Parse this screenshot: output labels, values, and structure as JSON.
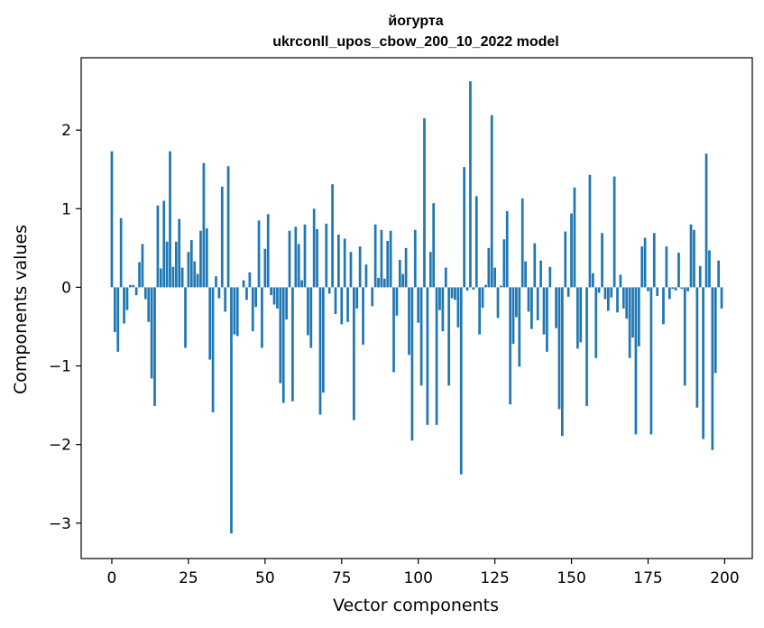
{
  "chart_data": {
    "type": "bar",
    "title_line1": "йогурта",
    "title_line2": "ukrconll_upos_cbow_200_10_2022 model",
    "xlabel": "Vector components",
    "ylabel": "Components values",
    "xlim": [
      -10,
      209
    ],
    "ylim": [
      -3.45,
      2.92
    ],
    "x_ticks": [
      0,
      25,
      50,
      75,
      100,
      125,
      150,
      175,
      200
    ],
    "x_tick_labels": [
      "0",
      "25",
      "50",
      "75",
      "100",
      "125",
      "150",
      "175",
      "200"
    ],
    "y_ticks": [
      -3,
      -2,
      -1,
      0,
      1,
      2
    ],
    "y_tick_labels": [
      "−3",
      "−2",
      "−1",
      "0",
      "1",
      "2"
    ],
    "bar_color": "#1f77b4",
    "grid": false,
    "x": [
      0,
      1,
      2,
      3,
      4,
      5,
      6,
      7,
      8,
      9,
      10,
      11,
      12,
      13,
      14,
      15,
      16,
      17,
      18,
      19,
      20,
      21,
      22,
      23,
      24,
      25,
      26,
      27,
      28,
      29,
      30,
      31,
      32,
      33,
      34,
      35,
      36,
      37,
      38,
      39,
      40,
      41,
      42,
      43,
      44,
      45,
      46,
      47,
      48,
      49,
      50,
      51,
      52,
      53,
      54,
      55,
      56,
      57,
      58,
      59,
      60,
      61,
      62,
      63,
      64,
      65,
      66,
      67,
      68,
      69,
      70,
      71,
      72,
      73,
      74,
      75,
      76,
      77,
      78,
      79,
      80,
      81,
      82,
      83,
      84,
      85,
      86,
      87,
      88,
      89,
      90,
      91,
      92,
      93,
      94,
      95,
      96,
      97,
      98,
      99,
      100,
      101,
      102,
      103,
      104,
      105,
      106,
      107,
      108,
      109,
      110,
      111,
      112,
      113,
      114,
      115,
      116,
      117,
      118,
      119,
      120,
      121,
      122,
      123,
      124,
      125,
      126,
      127,
      128,
      129,
      130,
      131,
      132,
      133,
      134,
      135,
      136,
      137,
      138,
      139,
      140,
      141,
      142,
      143,
      144,
      145,
      146,
      147,
      148,
      149,
      150,
      151,
      152,
      153,
      154,
      155,
      156,
      157,
      158,
      159,
      160,
      161,
      162,
      163,
      164,
      165,
      166,
      167,
      168,
      169,
      170,
      171,
      172,
      173,
      174,
      175,
      176,
      177,
      178,
      179,
      180,
      181,
      182,
      183,
      184,
      185,
      186,
      187,
      188,
      189,
      190,
      191,
      192,
      193,
      194,
      195,
      196,
      197,
      198,
      199
    ],
    "values": [
      1.73,
      -0.57,
      -0.82,
      0.88,
      -0.46,
      -0.29,
      0.03,
      0.03,
      -0.1,
      0.32,
      0.55,
      -0.15,
      -0.44,
      -1.16,
      -1.51,
      1.04,
      0.24,
      1.1,
      0.58,
      1.73,
      0.26,
      0.58,
      0.87,
      0.25,
      -0.77,
      0.45,
      0.6,
      0.33,
      0.17,
      0.72,
      1.58,
      0.75,
      -0.92,
      -1.59,
      0.14,
      -0.14,
      1.28,
      -0.31,
      1.54,
      -3.13,
      -0.6,
      -0.62,
      0.0,
      0.09,
      -0.16,
      0.19,
      -0.56,
      -0.25,
      0.85,
      -0.77,
      0.49,
      0.93,
      -0.1,
      -0.22,
      -0.27,
      -1.22,
      -1.47,
      -0.41,
      0.72,
      -1.45,
      0.77,
      0.55,
      0.09,
      0.8,
      -0.61,
      -0.77,
      1.0,
      0.74,
      -1.62,
      -1.34,
      0.81,
      -0.08,
      1.31,
      -0.34,
      0.67,
      -0.47,
      0.62,
      -0.44,
      0.45,
      -1.69,
      -0.27,
      0.52,
      -0.73,
      0.29,
      0.0,
      -0.24,
      0.8,
      0.12,
      0.73,
      0.11,
      0.59,
      0.72,
      -1.08,
      -0.36,
      0.35,
      0.17,
      0.5,
      -0.86,
      -1.95,
      0.73,
      -0.45,
      -1.25,
      2.15,
      -1.75,
      0.45,
      1.07,
      -1.75,
      -0.29,
      -0.56,
      0.25,
      -1.25,
      -0.14,
      -0.16,
      -0.51,
      -2.38,
      1.53,
      -0.04,
      2.62,
      -0.03,
      1.16,
      -0.6,
      -0.26,
      0.03,
      0.5,
      2.19,
      0.25,
      -0.39,
      0.02,
      0.61,
      0.97,
      -1.49,
      -0.72,
      -0.38,
      -1.01,
      1.13,
      0.33,
      -0.31,
      -0.53,
      0.56,
      -0.42,
      0.34,
      -0.6,
      -0.82,
      0.26,
      0.0,
      -0.52,
      -1.55,
      -1.89,
      0.71,
      -0.12,
      0.94,
      1.27,
      -0.78,
      -0.7,
      0.0,
      -1.51,
      1.43,
      0.18,
      -0.9,
      -0.07,
      0.69,
      -0.15,
      -0.3,
      -0.13,
      1.41,
      -0.32,
      0.16,
      -0.27,
      -0.4,
      -0.9,
      -0.64,
      -1.87,
      -0.75,
      0.52,
      0.63,
      -0.05,
      -1.87,
      0.69,
      -0.11,
      0.0,
      -0.47,
      0.52,
      -0.15,
      -0.02,
      -0.04,
      0.44,
      -0.02,
      -1.25,
      -0.05,
      0.8,
      0.73,
      -1.53,
      0.27,
      -1.93,
      1.7,
      0.47,
      -2.07,
      -1.09,
      0.34,
      -0.27
    ]
  }
}
